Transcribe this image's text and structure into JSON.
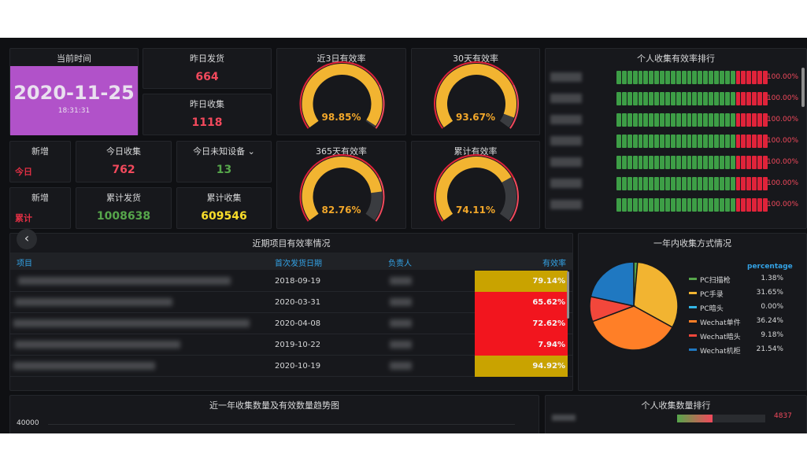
{
  "current_time": {
    "title": "当前时间",
    "date": "2020-11-25",
    "time": "18:31:31"
  },
  "stats": {
    "yesterday_ship": {
      "title": "昨日发货",
      "value": "664"
    },
    "yesterday_collect": {
      "title": "昨日收集",
      "value": "1118"
    },
    "new_today": {
      "title": "新增",
      "tag": "今日"
    },
    "today_collect": {
      "title": "今日收集",
      "value": "762"
    },
    "today_unknown": {
      "title": "今日未知设备 ⌄",
      "value": "13"
    },
    "new_total": {
      "title": "新增",
      "tag": "累计"
    },
    "total_ship": {
      "title": "累计发货",
      "value": "1008638"
    },
    "total_collect": {
      "title": "累计收集",
      "value": "609546"
    }
  },
  "gauges": [
    {
      "title": "近3日有效率",
      "value": "98.85%",
      "fraction": 0.9885
    },
    {
      "title": "30天有效率",
      "value": "93.67%",
      "fraction": 0.9367
    },
    {
      "title": "365天有效率",
      "value": "82.76%",
      "fraction": 0.8276
    },
    {
      "title": "累计有效率",
      "value": "74.11%",
      "fraction": 0.7411
    }
  ],
  "ranking": {
    "title": "个人收集有效率排行",
    "rows": [
      "100.00%",
      "100.00%",
      "100.00%",
      "100.00%",
      "100.00%",
      "100.00%",
      "100.00%"
    ]
  },
  "projects": {
    "title": "近期项目有效率情况",
    "columns": [
      "项目",
      "首次发货日期",
      "负责人",
      "有效率"
    ],
    "rows": [
      {
        "date": "2018-09-19",
        "eff": "79.14%",
        "color": "#c9a300"
      },
      {
        "date": "2020-03-31",
        "eff": "65.62%",
        "color": "#f2151e"
      },
      {
        "date": "2020-04-08",
        "eff": "72.62%",
        "color": "#f2151e"
      },
      {
        "date": "2019-10-22",
        "eff": "7.94%",
        "color": "#f2151e"
      },
      {
        "date": "2020-10-19",
        "eff": "94.92%",
        "color": "#c9a300"
      }
    ]
  },
  "pie": {
    "title": "一年内收集方式情况",
    "legend_header": "percentage",
    "items": [
      {
        "label": "PC扫描枪",
        "value": "1.38%",
        "pct": 1.38,
        "color": "#56a64b"
      },
      {
        "label": "PC手录",
        "value": "31.65%",
        "pct": 31.65,
        "color": "#f2b431"
      },
      {
        "label": "PC暗头",
        "value": "0.00%",
        "pct": 0.0,
        "color": "#33b5e5"
      },
      {
        "label": "Wechat单件",
        "value": "36.24%",
        "pct": 36.24,
        "color": "#ff7f27"
      },
      {
        "label": "Wechat暗头",
        "value": "9.18%",
        "pct": 9.18,
        "color": "#f2473b"
      },
      {
        "label": "Wechat机柜",
        "value": "21.54%",
        "pct": 21.54,
        "color": "#1f78c1"
      }
    ]
  },
  "trend": {
    "title": "近一年收集数量及有效数量趋势图",
    "ytick": "40000"
  },
  "personal_count": {
    "title": "个人收集数量排行",
    "row1_val": "4837"
  },
  "colors": {
    "bg": "#0f1013",
    "panel": "#17181c",
    "gauge": "#f2b431",
    "accent": "#b152c9"
  }
}
